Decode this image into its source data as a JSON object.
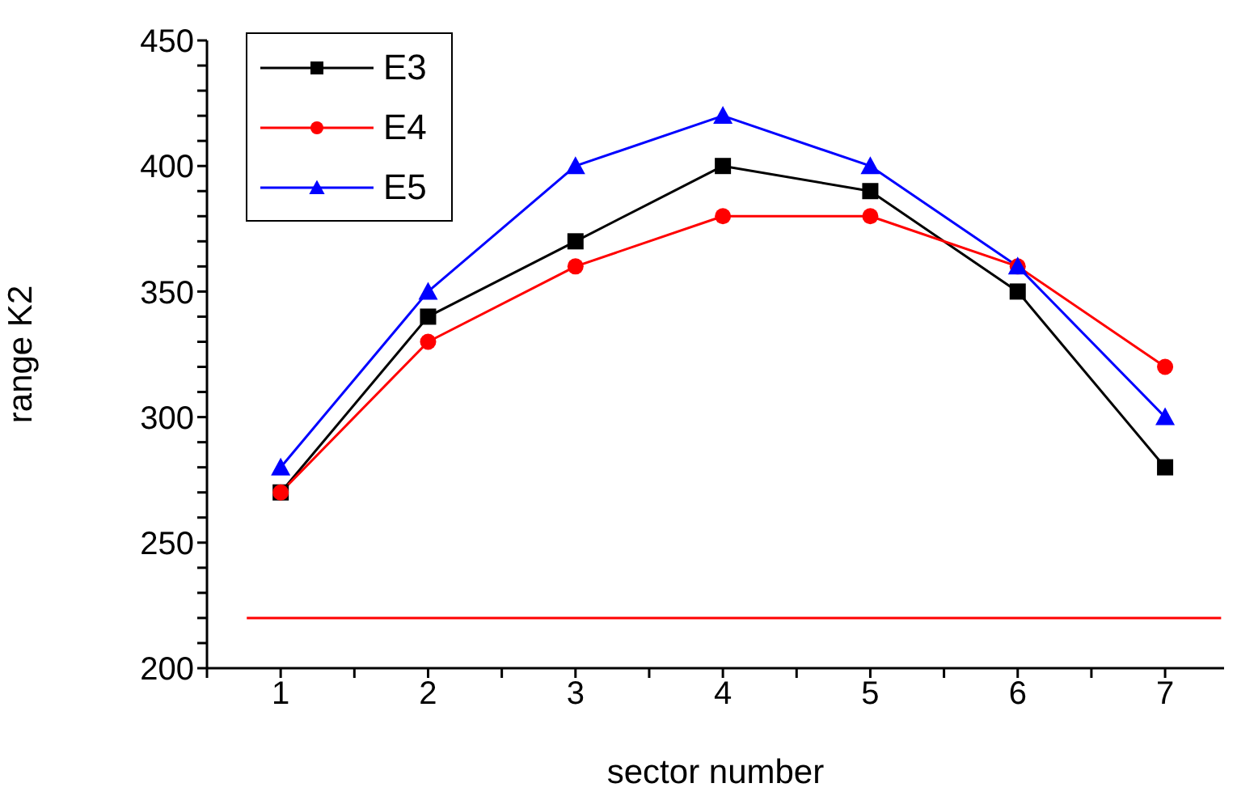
{
  "chart_data": {
    "type": "line",
    "xlabel": "sector number",
    "ylabel": "range K2",
    "x": [
      1,
      2,
      3,
      4,
      5,
      6,
      7
    ],
    "series": [
      {
        "name": "E3",
        "color": "#000000",
        "marker": "square",
        "values": [
          270,
          340,
          370,
          400,
          390,
          350,
          280
        ]
      },
      {
        "name": "E4",
        "color": "#ff0000",
        "marker": "circle",
        "values": [
          270,
          330,
          360,
          380,
          380,
          360,
          320
        ]
      },
      {
        "name": "E5",
        "color": "#0000ff",
        "marker": "triangle",
        "values": [
          280,
          350,
          400,
          420,
          400,
          360,
          300
        ]
      },
      {
        "color": "#ff0000",
        "marker": "none",
        "x": [
          0.77,
          7.38
        ],
        "values": [
          220,
          220
        ]
      }
    ],
    "xlim": [
      0.5,
      7.4
    ],
    "xticks": [
      {
        "value": 0.5,
        "label": null
      },
      1,
      {
        "value": 1.5,
        "label": null
      },
      2,
      {
        "value": 2.5,
        "label": null
      },
      3,
      {
        "value": 3.5,
        "label": null
      },
      4,
      {
        "value": 4.5,
        "label": null
      },
      5,
      {
        "value": 5.5,
        "label": null
      },
      6,
      {
        "value": 6.5,
        "label": null
      },
      7
    ],
    "ylim": [
      200,
      450
    ],
    "yticks": [
      200,
      {
        "value": 210,
        "label": null
      },
      {
        "value": 220,
        "label": null
      },
      {
        "value": 230,
        "label": null
      },
      {
        "value": 240,
        "label": null
      },
      250,
      {
        "value": 260,
        "label": null
      },
      {
        "value": 270,
        "label": null
      },
      {
        "value": 280,
        "label": null
      },
      {
        "value": 290,
        "label": null
      },
      300,
      {
        "value": 310,
        "label": null
      },
      {
        "value": 320,
        "label": null
      },
      {
        "value": 330,
        "label": null
      },
      {
        "value": 340,
        "label": null
      },
      350,
      {
        "value": 360,
        "label": null
      },
      {
        "value": 370,
        "label": null
      },
      {
        "value": 380,
        "label": null
      },
      {
        "value": 390,
        "label": null
      },
      400,
      {
        "value": 410,
        "label": null
      },
      {
        "value": 420,
        "label": null
      },
      {
        "value": 430,
        "label": null
      },
      {
        "value": 440,
        "label": null
      },
      450
    ],
    "legend": "top left",
    "grid": false,
    "line_style": "solid"
  }
}
